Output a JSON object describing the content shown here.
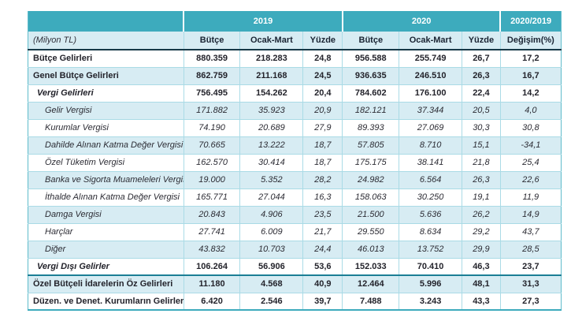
{
  "table": {
    "unit_label": "(Milyon TL)",
    "col_groups": {
      "corner": "",
      "y2019": "2019",
      "y2020": "2020",
      "ratio": "2020/2019"
    },
    "sub_headers": [
      "Bütçe",
      "Ocak-Mart",
      "Yüzde",
      "Bütçe",
      "Ocak-Mart",
      "Yüzde",
      "Değişim(%)"
    ],
    "rows": [
      {
        "label": "Bütçe Gelirleri",
        "level": "total",
        "indent": 0,
        "values": [
          "880.359",
          "218.283",
          "24,8",
          "956.588",
          "255.749",
          "26,7",
          "17,2"
        ]
      },
      {
        "label": "Genel Bütçe Gelirleri",
        "level": "total",
        "indent": 0,
        "values": [
          "862.759",
          "211.168",
          "24,5",
          "936.635",
          "246.510",
          "26,3",
          "16,7"
        ]
      },
      {
        "label": "Vergi Gelirleri",
        "level": "subtotal",
        "indent": 1,
        "values": [
          "756.495",
          "154.262",
          "20,4",
          "784.602",
          "176.100",
          "22,4",
          "14,2"
        ]
      },
      {
        "label": "Gelir Vergisi",
        "level": "detail",
        "indent": 2,
        "values": [
          "171.882",
          "35.923",
          "20,9",
          "182.121",
          "37.344",
          "20,5",
          "4,0"
        ]
      },
      {
        "label": "Kurumlar Vergisi",
        "level": "detail",
        "indent": 2,
        "values": [
          "74.190",
          "20.689",
          "27,9",
          "89.393",
          "27.069",
          "30,3",
          "30,8"
        ]
      },
      {
        "label": "Dahilde Alınan Katma Değer Vergisi",
        "level": "detail",
        "indent": 2,
        "values": [
          "70.665",
          "13.222",
          "18,7",
          "57.805",
          "8.710",
          "15,1",
          "-34,1"
        ]
      },
      {
        "label": "Özel Tüketim Vergisi",
        "level": "detail",
        "indent": 2,
        "values": [
          "162.570",
          "30.414",
          "18,7",
          "175.175",
          "38.141",
          "21,8",
          "25,4"
        ]
      },
      {
        "label": "Banka ve Sigorta Muameleleri Vergisi",
        "level": "detail",
        "indent": 2,
        "values": [
          "19.000",
          "5.352",
          "28,2",
          "24.982",
          "6.564",
          "26,3",
          "22,6"
        ]
      },
      {
        "label": "İthalde Alınan Katma Değer Vergisi",
        "level": "detail",
        "indent": 2,
        "values": [
          "165.771",
          "27.044",
          "16,3",
          "158.063",
          "30.250",
          "19,1",
          "11,9"
        ]
      },
      {
        "label": "Damga Vergisi",
        "level": "detail",
        "indent": 2,
        "values": [
          "20.843",
          "4.906",
          "23,5",
          "21.500",
          "5.636",
          "26,2",
          "14,9"
        ]
      },
      {
        "label": "Harçlar",
        "level": "detail",
        "indent": 2,
        "values": [
          "27.741",
          "6.009",
          "21,7",
          "29.550",
          "8.634",
          "29,2",
          "43,7"
        ]
      },
      {
        "label": "Diğer",
        "level": "detail",
        "indent": 2,
        "values": [
          "43.832",
          "10.703",
          "24,4",
          "46.013",
          "13.752",
          "29,9",
          "28,5"
        ]
      },
      {
        "label": "Vergi Dışı Gelirler",
        "level": "subtotal",
        "indent": 1,
        "values": [
          "106.264",
          "56.906",
          "53,6",
          "152.033",
          "70.410",
          "46,3",
          "23,7"
        ]
      },
      {
        "label": "Özel Bütçeli İdarelerin Öz Gelirleri",
        "level": "total",
        "indent": 0,
        "values": [
          "11.180",
          "4.568",
          "40,9",
          "12.464",
          "5.996",
          "48,1",
          "31,3"
        ]
      },
      {
        "label": "Düzen. ve Denet. Kurumların Gelirleri",
        "level": "total",
        "indent": 0,
        "values": [
          "6.420",
          "2.546",
          "39,7",
          "7.488",
          "3.243",
          "43,3",
          "27,3"
        ]
      }
    ]
  },
  "colors": {
    "teal": "#3dabbd",
    "lightblue": "#d7ecf3",
    "border-light": "#aadbe6",
    "dark-line": "#173948",
    "heavy-teal": "#1b7e95",
    "text-dark": "#23232b"
  }
}
